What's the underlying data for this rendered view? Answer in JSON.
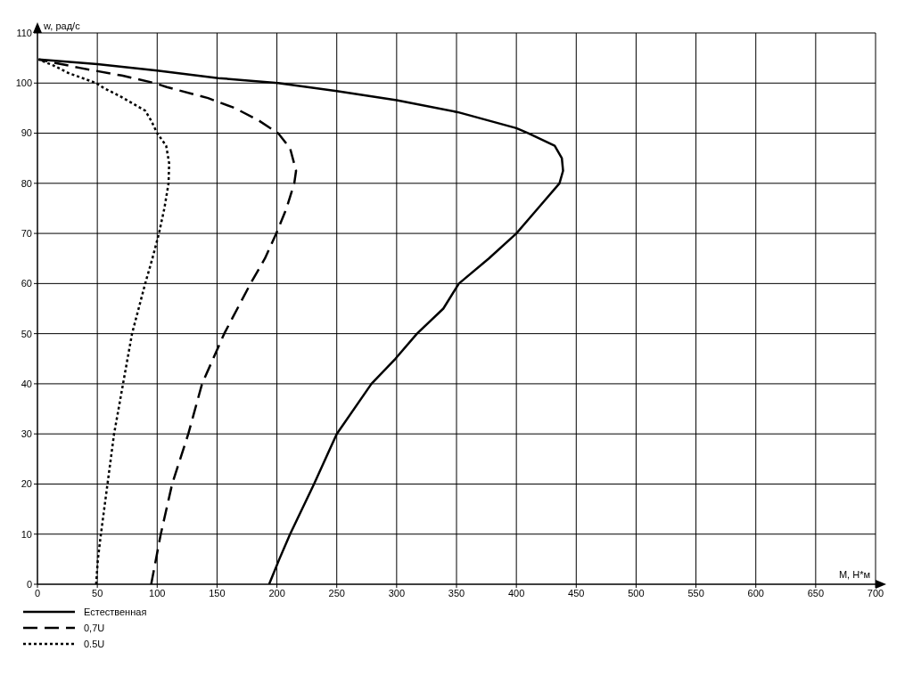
{
  "chart_data": {
    "type": "line",
    "xlabel": "М, Н*м",
    "ylabel": "w, рад/с",
    "xlim": [
      0,
      700
    ],
    "xticks": [
      0,
      50,
      100,
      150,
      200,
      250,
      300,
      350,
      400,
      450,
      500,
      550,
      600,
      650,
      700
    ],
    "ylim": [
      0,
      110
    ],
    "yticks": [
      0,
      10,
      20,
      30,
      40,
      50,
      60,
      70,
      80,
      90,
      100,
      110
    ],
    "grid": true,
    "legend": "bottom left",
    "marker": "none",
    "series": [
      {
        "name": "Естественная",
        "color": "#000000",
        "line_style": "solid",
        "x": [
          193.5,
          202,
          211,
          231,
          250,
          279,
          299,
          317,
          339,
          352,
          377,
          400,
          418,
          436,
          439,
          438,
          432,
          410,
          400,
          351,
          300,
          250,
          201,
          151,
          100,
          50,
          1
        ],
        "values": [
          0,
          5,
          10,
          20,
          30,
          40,
          45,
          50,
          55,
          60,
          65,
          70,
          75,
          80,
          82.5,
          85,
          87.5,
          90,
          91,
          94.2,
          96.6,
          98.4,
          100,
          101,
          102.5,
          103.8,
          104.7
        ]
      },
      {
        "name": "0,7U",
        "color": "#000000",
        "line_style": "dashed",
        "x": [
          95,
          103,
          112.5,
          126,
          137.5,
          156,
          178,
          190,
          199.5,
          208,
          214.5,
          216,
          211,
          201,
          185,
          165,
          142.5,
          108,
          98,
          70.5,
          36,
          1
        ],
        "values": [
          0,
          10,
          20,
          30,
          40,
          50,
          60,
          65,
          70,
          75,
          80,
          82.5,
          87,
          90,
          92.5,
          95,
          97,
          99.2,
          100,
          101.5,
          103,
          104.7
        ]
      },
      {
        "name": "0.5U",
        "color": "#000000",
        "line_style": "dotted",
        "x": [
          49,
          50.5,
          53,
          58.5,
          64,
          71.5,
          79,
          90,
          96,
          101.5,
          106,
          109.5,
          110,
          107.5,
          100,
          95,
          90,
          79,
          68,
          55.5,
          49,
          26,
          13.5,
          1
        ],
        "values": [
          0,
          5,
          10,
          20,
          30,
          40,
          50,
          60,
          65,
          70,
          75,
          80,
          84,
          87.5,
          90,
          92.5,
          94.5,
          96,
          97.5,
          99,
          100,
          102,
          103.5,
          104.7
        ]
      }
    ]
  }
}
